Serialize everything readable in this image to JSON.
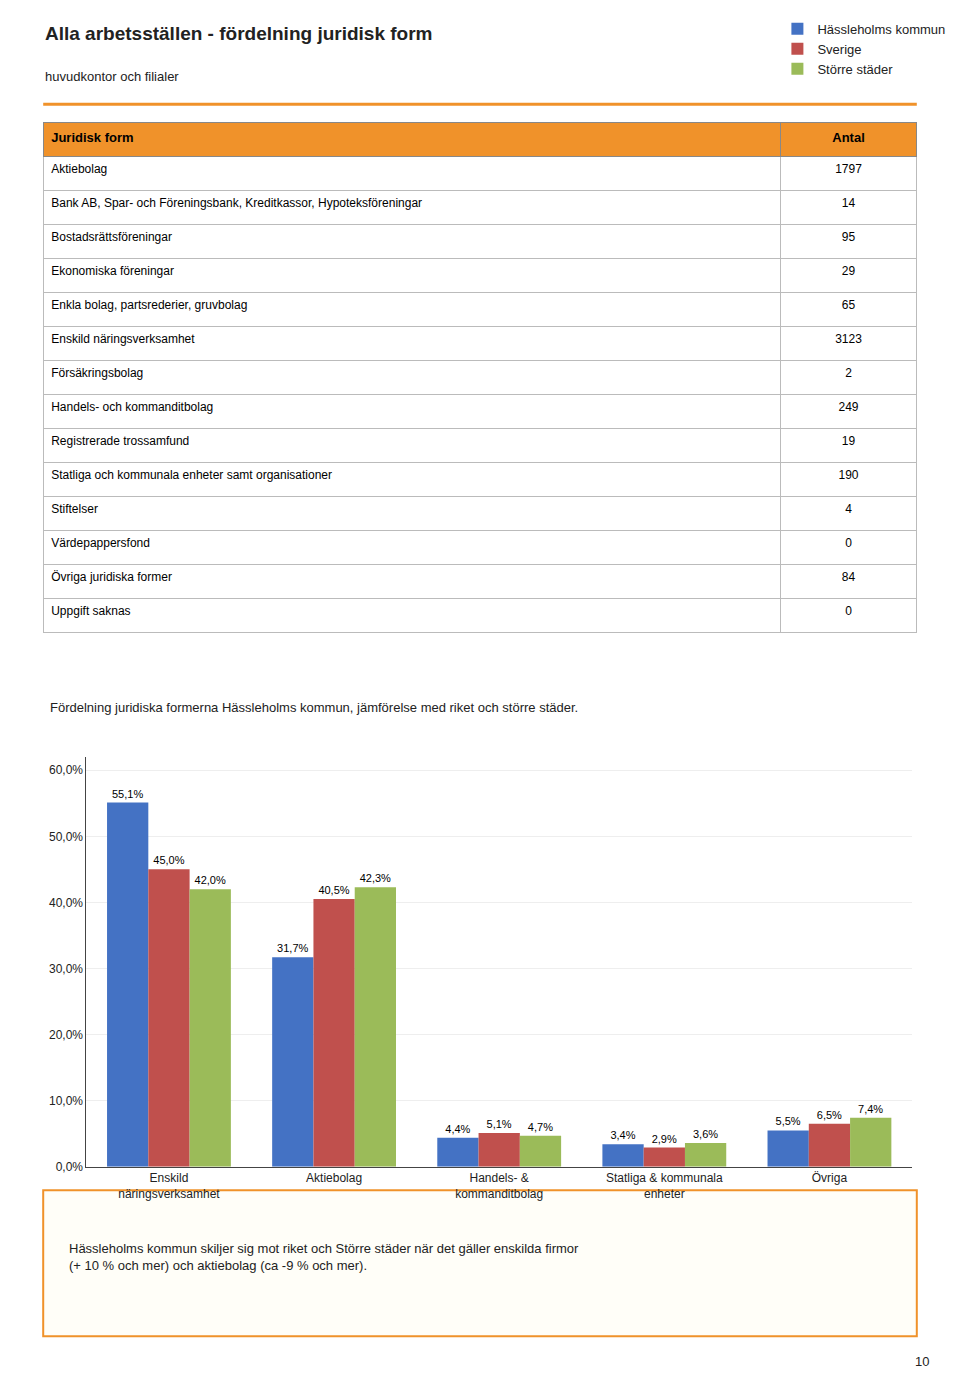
{
  "chart_data": [
    {
      "type": "table",
      "title": "Alla arbetsställen - fördelning juridisk form",
      "subtitle": "huvudkontor och filialer",
      "color": "#F0922A",
      "columns": [
        "Juridisk form",
        "Antal"
      ],
      "categories": [
        "Aktiebolag",
        "Bank AB, Spar- och Föreningsbank, Kreditkassor, Hypoteksföreningar",
        "Bostadsrättsföreningar",
        "Ekonomiska föreningar",
        "Enkla bolag, partsrederier, gruvbolag",
        "Enskild näringsverksamhet",
        "Försäkringsbolag",
        "Handels- och kommanditbolag",
        "Registrerade trossamfund",
        "Statliga och kommunala enheter samt organisationer",
        "Stiftelser",
        "Värdepappersfond",
        "Övriga juridiska former",
        "Uppgift saknas"
      ],
      "values": [
        1797,
        14,
        95,
        29,
        65,
        3123,
        2,
        249,
        19,
        190,
        4,
        0,
        84,
        0
      ]
    },
    {
      "type": "bar",
      "title": "Fördelning juridiska formerna Hässleholms kommun, jämförelse med riket och större städer.",
      "categories": [
        "Enskild\nnäringsverksamhet",
        "Aktiebolag",
        "Handels- &\nkommanditbolag",
        "Statliga & kommunala\nenheter",
        "Övriga"
      ],
      "series": [
        {
          "name": "Hässleholms kommun",
          "color": "#4472C4",
          "values": [
            55.1,
            31.7,
            4.4,
            3.4,
            5.5
          ],
          "value_labels": [
            "55,1%",
            "31,7%",
            "4,4%",
            "3,4%",
            "5,5%"
          ]
        },
        {
          "name": "Sverige",
          "color": "#C0504D",
          "values": [
            45.0,
            40.5,
            5.1,
            2.9,
            6.5
          ],
          "value_labels": [
            "45,0%",
            "40,5%",
            "5,1%",
            "2,9%",
            "6,5%"
          ]
        },
        {
          "name": "Större städer",
          "color": "#9BBB59",
          "values": [
            42.0,
            42.3,
            4.7,
            3.6,
            7.4
          ],
          "value_labels": [
            "42,0%",
            "42,3%",
            "4,7%",
            "3,6%",
            "7,4%"
          ]
        }
      ],
      "ylim": [
        0,
        62
      ],
      "yticks": [
        {
          "value": 0,
          "label": "0,0%"
        },
        {
          "value": 10,
          "label": "10,0%"
        },
        {
          "value": 20,
          "label": "20,0%"
        },
        {
          "value": 30,
          "label": "30,0%"
        },
        {
          "value": 40,
          "label": "40,0%"
        },
        {
          "value": 50,
          "label": "50,0%"
        },
        {
          "value": 60,
          "label": "60,0%"
        }
      ],
      "grid": true,
      "legend": "upper right",
      "data_labels": true,
      "annotations": [
        "Hässleholms kommun skiljer sig mot riket och Större städer när det gäller enskilda firmor\n(+ 10 % och mer) och aktiebolag (ca -9 % och mer).",
        "10"
      ]
    }
  ]
}
